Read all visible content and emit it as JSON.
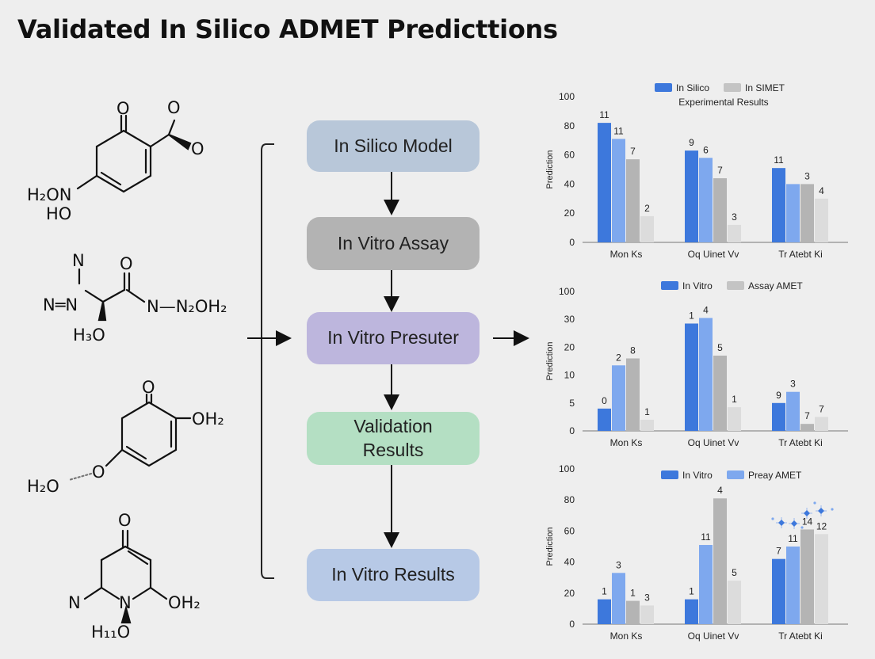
{
  "title": "Validated In Silico ADMET Predicttions",
  "molecules": {
    "m1": {
      "o_top": "O",
      "o_r1": "O",
      "o_r2": "O",
      "l1": "H₂ON",
      "l2": "HO"
    },
    "m2": {
      "n_top": "N",
      "n_left": "N═N",
      "o_top": "O",
      "h3o": "H₃O",
      "chain": "N—N₂OH₂"
    },
    "m3": {
      "o_top": "O",
      "oh2": "OH₂",
      "h2o": "H₂O",
      "o": "O"
    },
    "m4": {
      "o_top": "O",
      "n_left": "N",
      "n_mid": "N",
      "oh2": "OH₂",
      "h11o": "H₁₁O"
    }
  },
  "flowchart": {
    "boxes": [
      {
        "label": "In Silico Model",
        "color": "#b8c7d9"
      },
      {
        "label": "In Vitro Assay",
        "color": "#b3b3b3"
      },
      {
        "label": "In Vitro Presuter",
        "color": "#bdb6dd"
      },
      {
        "label": "Validation Results",
        "color": "#b4dfc3"
      },
      {
        "label": "In Vitro Results",
        "color": "#b7c9e6"
      }
    ]
  },
  "chart_data": [
    {
      "type": "bar",
      "ylabel": "Prediction",
      "yticks": [
        "0",
        "20",
        "40",
        "60",
        "80",
        "100"
      ],
      "ylim": [
        0,
        100
      ],
      "legend": [
        "In Silico",
        "In SIMET"
      ],
      "legend_subtitle": "Experimental Results",
      "categories": [
        "Mon Ks",
        "Oq Uinet Vv",
        "Tr Atebt Ki"
      ],
      "series": [
        {
          "color": "#3d78dc",
          "values": [
            82,
            63,
            51
          ],
          "labels": [
            "11",
            "9",
            "11"
          ]
        },
        {
          "color": "#7ea8ee",
          "values": [
            71,
            58,
            40
          ],
          "labels": [
            "11",
            "6",
            ""
          ]
        },
        {
          "color": "#b4b4b4",
          "values": [
            57,
            44,
            40
          ],
          "labels": [
            "7",
            "7",
            "3"
          ]
        },
        {
          "color": "#dcdcdc",
          "values": [
            18,
            12,
            30
          ],
          "labels": [
            "2",
            "3",
            "4"
          ]
        }
      ]
    },
    {
      "type": "bar",
      "ylabel": "Prediction",
      "yticks": [
        "0",
        "5",
        "10",
        "20",
        "30",
        "100"
      ],
      "ylim": [
        0,
        100
      ],
      "legend": [
        "In Vitro",
        "Assay AMET"
      ],
      "categories": [
        "Mon Ks",
        "Oq Uinet Vv",
        "Tr Atebt Ki"
      ],
      "series": [
        {
          "color": "#3d78dc",
          "values": [
            16,
            77,
            20
          ],
          "labels": [
            "0",
            "1",
            "9"
          ]
        },
        {
          "color": "#7ea8ee",
          "values": [
            47,
            81,
            28
          ],
          "labels": [
            "2",
            "4",
            "3"
          ]
        },
        {
          "color": "#b4b4b4",
          "values": [
            52,
            54,
            5
          ],
          "labels": [
            "8",
            "5",
            "7"
          ]
        },
        {
          "color": "#dcdcdc",
          "values": [
            8,
            17,
            10
          ],
          "labels": [
            "1",
            "1",
            "7"
          ]
        }
      ]
    },
    {
      "type": "bar",
      "ylabel": "Prediction",
      "yticks": [
        "0",
        "20",
        "40",
        "60",
        "80",
        "100"
      ],
      "ylim": [
        0,
        100
      ],
      "legend": [
        "In Vitro",
        "Preay AMET"
      ],
      "categories": [
        "Mon Ks",
        "Oq Uinet Vv",
        "Tr Atebt Ki"
      ],
      "series": [
        {
          "color": "#3d78dc",
          "values": [
            16,
            16,
            42
          ],
          "labels": [
            "1",
            "1",
            "7"
          ]
        },
        {
          "color": "#7ea8ee",
          "values": [
            33,
            51,
            50
          ],
          "labels": [
            "3",
            "11",
            "11"
          ]
        },
        {
          "color": "#b4b4b4",
          "values": [
            15,
            81,
            61
          ],
          "labels": [
            "1",
            "4",
            "14"
          ]
        },
        {
          "color": "#dcdcdc",
          "values": [
            12,
            28,
            58
          ],
          "labels": [
            "3",
            "5",
            "12"
          ]
        }
      ]
    }
  ]
}
